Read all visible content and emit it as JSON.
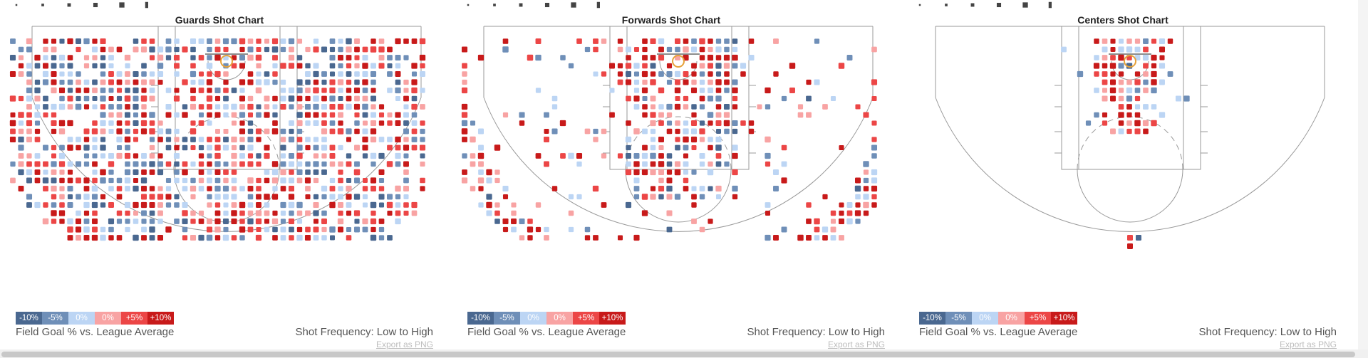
{
  "colors": {
    "neg10": "#4a6890",
    "neg5": "#6f8fb8",
    "zero_neg": "#bcd5f4",
    "zero_pos": "#f8a3a3",
    "pos5": "#ec4646",
    "pos10": "#c81a1a",
    "court_line": "#999999",
    "rim": "#e6a23a"
  },
  "legend": {
    "labels": [
      "-10%",
      "-5%",
      "0%",
      "0%",
      "+5%",
      "+10%"
    ],
    "fg_label": "Field Goal % vs. League Average",
    "freq_label": "Shot Frequency: Low to High",
    "export_label": "Export as PNG"
  },
  "chart_data": [
    {
      "type": "heatmap",
      "title": "Guards Shot Chart",
      "encoding": "hexbin-style shot chart; color = FG% vs. league average (-10% to +10%), size = shot frequency",
      "zone_fg_vs_league_pct": [
        {
          "zone": "restricted area",
          "value": 2
        },
        {
          "zone": "paint (non-RA)",
          "value": -2
        },
        {
          "zone": "mid-range left",
          "value": 1
        },
        {
          "zone": "mid-range center",
          "value": -1
        },
        {
          "zone": "mid-range right",
          "value": -1
        },
        {
          "zone": "left corner 3",
          "value": 1
        },
        {
          "zone": "above the break 3",
          "value": 1
        },
        {
          "zone": "right corner 3",
          "value": 2
        }
      ]
    },
    {
      "type": "heatmap",
      "title": "Forwards Shot Chart",
      "encoding": "hexbin-style shot chart; color = FG% vs. league average (-10% to +10%), size = shot frequency",
      "zone_fg_vs_league_pct": [
        {
          "zone": "restricted area",
          "value": 2
        },
        {
          "zone": "paint (non-RA)",
          "value": 1
        },
        {
          "zone": "mid-range left",
          "value": 2
        },
        {
          "zone": "mid-range center",
          "value": 3
        },
        {
          "zone": "mid-range right",
          "value": 3
        },
        {
          "zone": "left corner 3",
          "value": 1
        },
        {
          "zone": "above the break 3",
          "value": 2
        },
        {
          "zone": "right corner 3",
          "value": 1
        }
      ]
    },
    {
      "type": "heatmap",
      "title": "Centers Shot Chart",
      "encoding": "hexbin-style shot chart; color = FG% vs. league average (-10% to +10%), size = shot frequency",
      "zone_fg_vs_league_pct": [
        {
          "zone": "restricted area",
          "value": 2
        },
        {
          "zone": "paint (non-RA)",
          "value": 4
        },
        {
          "zone": "mid-range",
          "value": 4
        },
        {
          "zone": "above the break 3",
          "value": 5
        }
      ]
    }
  ]
}
